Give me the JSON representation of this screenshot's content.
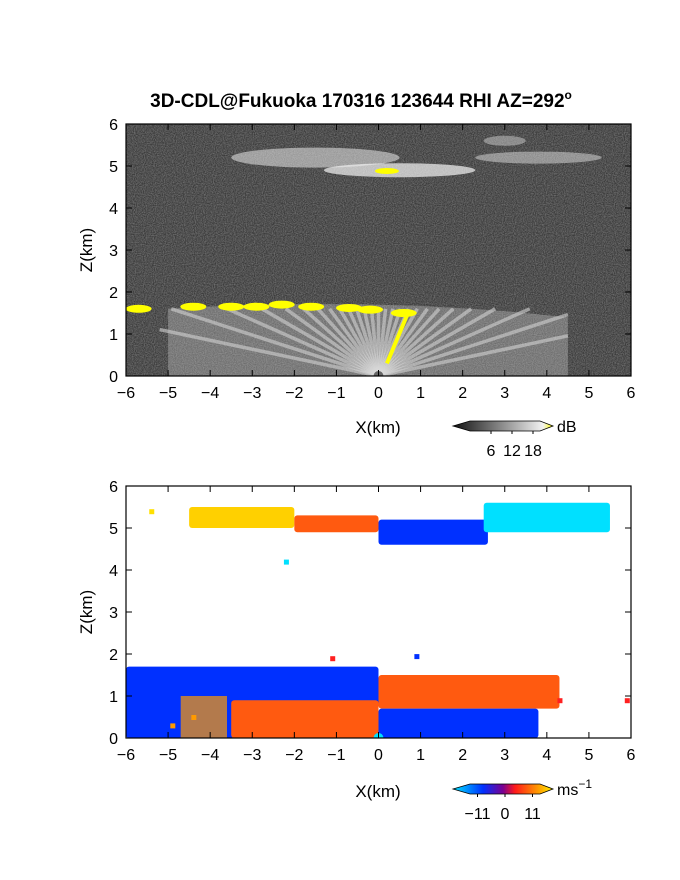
{
  "figure_title": "3D-CDL@Fukuoka 170316 123644 RHI AZ=292",
  "title_superscript": "o",
  "chart_data": [
    {
      "type": "heatmap",
      "panel": "top",
      "quantity": "backscatter intensity",
      "xlabel": "X(km)",
      "ylabel": "Z(km)",
      "xlim": [
        -6,
        6
      ],
      "ylim": [
        0,
        6
      ],
      "xticks": [
        "−6",
        "−5",
        "−4",
        "−3",
        "−2",
        "−1",
        "0",
        "1",
        "2",
        "3",
        "4",
        "5",
        "6"
      ],
      "yticks": [
        "0",
        "1",
        "2",
        "3",
        "4",
        "5",
        "6"
      ],
      "colorbar": {
        "unit": "dB",
        "ticks": [
          6,
          12,
          18
        ],
        "tick_labels": [
          "6",
          "12",
          "18"
        ],
        "range": [
          0,
          20
        ]
      },
      "features": [
        {
          "label": "boundary layer top",
          "x": [
            -6,
            4.5
          ],
          "z": 1.65,
          "value_db": 18
        },
        {
          "label": "cloud layer",
          "x": [
            -5.5,
            5.5
          ],
          "z": 5.0,
          "value_db": 16
        },
        {
          "label": "bright core",
          "x": [
            -0.2,
            0.6
          ],
          "z": 4.9,
          "value_db": 20
        }
      ]
    },
    {
      "type": "heatmap",
      "panel": "bottom",
      "quantity": "Doppler velocity",
      "xlabel": "X(km)",
      "ylabel": "Z(km)",
      "xlim": [
        -6,
        6
      ],
      "ylim": [
        0,
        6
      ],
      "xticks": [
        "−6",
        "−5",
        "−4",
        "−3",
        "−2",
        "−1",
        "0",
        "1",
        "2",
        "3",
        "4",
        "5",
        "6"
      ],
      "yticks": [
        "0",
        "1",
        "2",
        "3",
        "4",
        "5",
        "6"
      ],
      "colorbar": {
        "unit": "ms",
        "unit_exp": "−1",
        "ticks": [
          -11,
          0,
          11
        ],
        "tick_labels": [
          "−11",
          "0",
          "11"
        ],
        "range": [
          -14,
          14
        ]
      },
      "features": [
        {
          "label": "upper layer west",
          "x": [
            -4.5,
            -2.0
          ],
          "z": [
            5.0,
            5.5
          ],
          "velocity": 10
        },
        {
          "label": "upper layer centre",
          "x": [
            -2.0,
            0
          ],
          "z": [
            4.9,
            5.3
          ],
          "velocity": 5
        },
        {
          "label": "upper layer east",
          "x": [
            0,
            2.6
          ],
          "z": [
            4.6,
            5.2
          ],
          "velocity": -8
        },
        {
          "label": "upper far east",
          "x": [
            2.5,
            5.5
          ],
          "z": [
            4.9,
            5.6
          ],
          "velocity": -12
        },
        {
          "label": "low level west",
          "x": [
            -6,
            0
          ],
          "z": [
            0,
            1.7
          ],
          "velocity": -9
        },
        {
          "label": "low level west core",
          "x": [
            -3.5,
            0
          ],
          "z": [
            0,
            0.9
          ],
          "velocity": 6
        },
        {
          "label": "low level east",
          "x": [
            0,
            4.3
          ],
          "z": [
            0.7,
            1.5
          ],
          "velocity": 5
        },
        {
          "label": "low level east base",
          "x": [
            0,
            3.8
          ],
          "z": [
            0,
            0.7
          ],
          "velocity": -9
        }
      ]
    }
  ],
  "colors": {
    "gray_background": "#3a3a3a",
    "yellow_high": "#ffff00",
    "velocity_scale": [
      "#00e0ff",
      "#0030ff",
      "#6a00b0",
      "#ff1a1a",
      "#ff9a00",
      "#ffe000"
    ]
  }
}
